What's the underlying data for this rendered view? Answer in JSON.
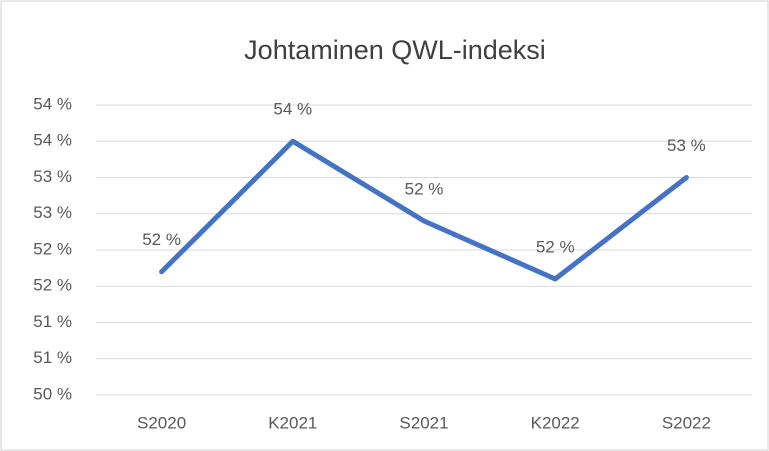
{
  "chart_data": {
    "type": "line",
    "title": "Johtaminen QWL-indeksi",
    "categories": [
      "S2020",
      "K2021",
      "S2021",
      "K2022",
      "S2022"
    ],
    "values": [
      51.7,
      53.5,
      52.4,
      51.6,
      53.0
    ],
    "value_labels": [
      "52 %",
      "54 %",
      "52 %",
      "52 %",
      "53 %"
    ],
    "color": "#4472c4",
    "ylim": [
      50,
      54
    ],
    "yticks": [
      {
        "value": 50,
        "label": "50 %"
      },
      {
        "value": 50.5,
        "label": "51 %"
      },
      {
        "value": 51,
        "label": "51 %"
      },
      {
        "value": 51.5,
        "label": "52 %"
      },
      {
        "value": 52,
        "label": "52 %"
      },
      {
        "value": 52.5,
        "label": "53 %"
      },
      {
        "value": 53,
        "label": "53 %"
      },
      {
        "value": 53.5,
        "label": "54 %"
      },
      {
        "value": 54,
        "label": "54 %"
      }
    ],
    "grid": true
  }
}
